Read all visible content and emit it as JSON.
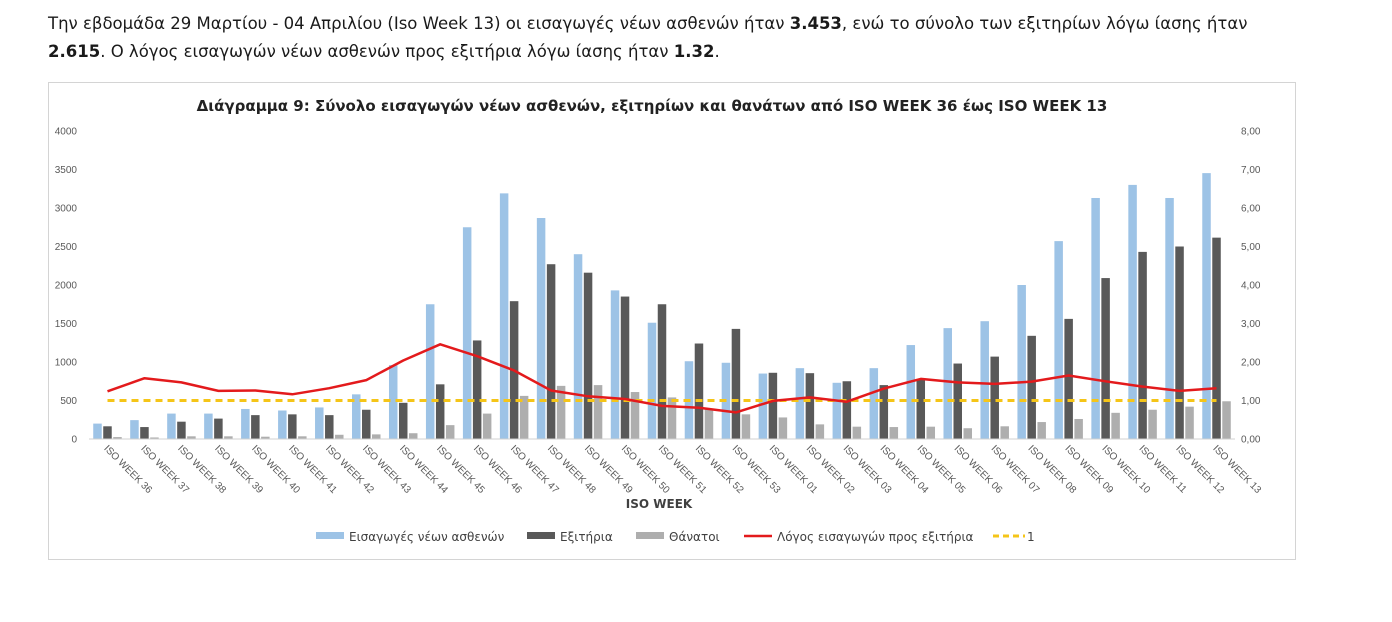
{
  "paragraph": {
    "p1": "Την εβδομάδα 29 Μαρτίου - 04 Απριλίου (Iso Week 13) οι εισαγωγές νέων ασθενών ήταν ",
    "v1": "3.453",
    "p2": ", ενώ το σύνολο των εξιτηρίων λόγω ίασης ήταν ",
    "v2": "2.615",
    "p3": ". Ο λόγος εισαγωγών νέων ασθενών προς εξιτήρια λόγω ίασης ήταν ",
    "v3": "1.32",
    "p4": "."
  },
  "colors": {
    "admissions": "#9DC3E6",
    "discharges": "#595959",
    "deaths": "#AEAEAE",
    "ratio": "#E31A1C",
    "reference": "#F5C518"
  },
  "chart_data": {
    "type": "bar",
    "title": "Διάγραμμα 9: Σύνολο εισαγωγών νέων ασθενών, εξιτηρίων και θανάτων από ISO WEEK 36 έως ISO WEEK 13",
    "xlabel": "ISO WEEK",
    "ylabel": "",
    "ylim": [
      0,
      4000
    ],
    "y2lim": [
      0,
      8
    ],
    "yticks": [
      "0",
      "500",
      "1000",
      "1500",
      "2000",
      "2500",
      "3000",
      "3500",
      "4000"
    ],
    "y2ticks": [
      "0,00",
      "1,00",
      "2,00",
      "3,00",
      "4,00",
      "5,00",
      "6,00",
      "7,00",
      "8,00"
    ],
    "categories": [
      "ISO WEEK 36",
      "ISO WEEK 37",
      "ISO WEEK 38",
      "ISO WEEK 39",
      "ISO WEEK 40",
      "ISO WEEK 41",
      "ISO WEEK 42",
      "ISO WEEK 43",
      "ISO WEEK 44",
      "ISO WEEK 45",
      "ISO WEEK 46",
      "ISO WEEK 47",
      "ISO WEEK 48",
      "ISO WEEK 49",
      "ISO WEEK 50",
      "ISO WEEK 51",
      "ISO WEEK 52",
      "ISO WEEK 53",
      "ISO WEEK 01",
      "ISO WEEK 02",
      "ISO WEEK 03",
      "ISO WEEK 04",
      "ISO WEEK 05",
      "ISO WEEK 06",
      "ISO WEEK 07",
      "ISO WEEK 08",
      "ISO WEEK 09",
      "ISO WEEK 10",
      "ISO WEEK 11",
      "ISO WEEK 12",
      "ISO WEEK 13"
    ],
    "series": [
      {
        "name": "Εισαγωγές νέων ασθενών",
        "kind": "bar",
        "axis": "left",
        "values": [
          200,
          245,
          330,
          330,
          390,
          370,
          410,
          580,
          960,
          1750,
          2750,
          3190,
          2870,
          2400,
          1930,
          1510,
          1010,
          990,
          850,
          920,
          730,
          920,
          1220,
          1440,
          1530,
          2000,
          2570,
          3130,
          3300,
          3130,
          3453
        ]
      },
      {
        "name": "Εξιτήρια",
        "kind": "bar",
        "axis": "left",
        "values": [
          165,
          155,
          225,
          265,
          310,
          320,
          310,
          380,
          470,
          710,
          1280,
          1790,
          2270,
          2160,
          1850,
          1750,
          1240,
          1430,
          860,
          855,
          750,
          700,
          780,
          980,
          1070,
          1340,
          1560,
          2090,
          2430,
          2500,
          2615
        ]
      },
      {
        "name": "Θάνατοι",
        "kind": "bar",
        "axis": "left",
        "values": [
          25,
          20,
          35,
          35,
          30,
          35,
          55,
          60,
          75,
          180,
          330,
          560,
          690,
          700,
          610,
          540,
          390,
          320,
          280,
          190,
          160,
          155,
          160,
          140,
          165,
          220,
          260,
          340,
          380,
          420,
          490
        ]
      },
      {
        "name": "Λόγος εισαγωγών προς εξιτήρια",
        "kind": "line",
        "axis": "right",
        "values": [
          1.24,
          1.58,
          1.47,
          1.25,
          1.26,
          1.16,
          1.32,
          1.53,
          2.04,
          2.46,
          2.15,
          1.78,
          1.26,
          1.11,
          1.04,
          0.86,
          0.81,
          0.69,
          0.99,
          1.08,
          0.97,
          1.31,
          1.56,
          1.47,
          1.43,
          1.49,
          1.65,
          1.5,
          1.36,
          1.25,
          1.32
        ]
      },
      {
        "name": "1",
        "kind": "dashed-line",
        "axis": "right",
        "values": [
          1,
          1,
          1,
          1,
          1,
          1,
          1,
          1,
          1,
          1,
          1,
          1,
          1,
          1,
          1,
          1,
          1,
          1,
          1,
          1,
          1,
          1,
          1,
          1,
          1,
          1,
          1,
          1,
          1,
          1,
          1
        ]
      }
    ],
    "legend_position": "bottom",
    "grid": false
  }
}
